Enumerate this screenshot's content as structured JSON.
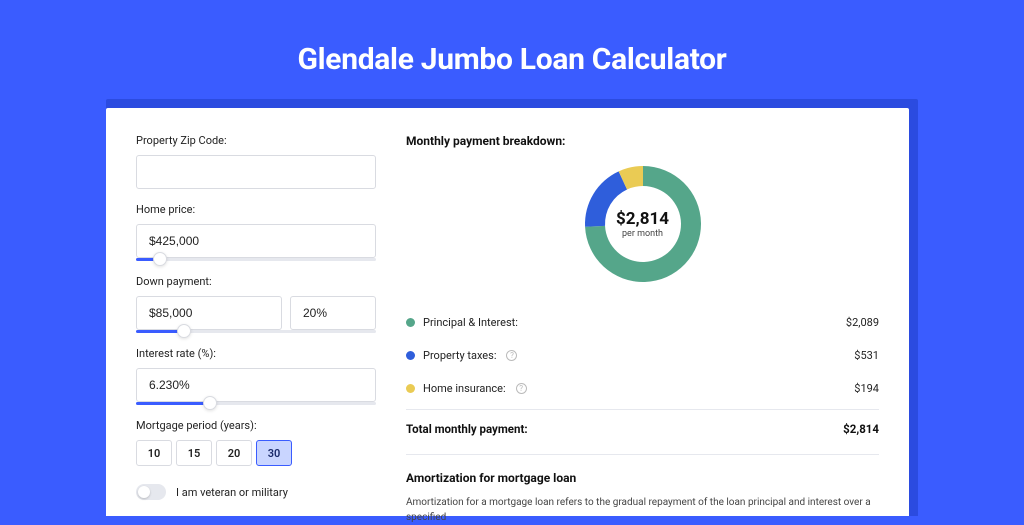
{
  "header": {
    "title": "Glendale Jumbo Loan Calculator"
  },
  "form": {
    "zip": {
      "label": "Property Zip Code:",
      "value": ""
    },
    "home_price": {
      "label": "Home price:",
      "value": "$425,000",
      "slider": {
        "fill_pct": 10,
        "thumb_pct": 10
      }
    },
    "down_payment": {
      "label": "Down payment:",
      "amount": "$85,000",
      "percent": "20%",
      "slider": {
        "fill_pct": 20,
        "thumb_pct": 20
      }
    },
    "interest_rate": {
      "label": "Interest rate (%):",
      "value": "6.230%",
      "slider": {
        "fill_pct": 31,
        "thumb_pct": 31
      }
    },
    "mortgage_period": {
      "label": "Mortgage period (years):",
      "options": [
        "10",
        "15",
        "20",
        "30"
      ],
      "selected": "30"
    },
    "veteran": {
      "label": "I am veteran or military",
      "checked": false
    }
  },
  "breakdown": {
    "title": "Monthly payment breakdown:",
    "donut": {
      "value": "$2,814",
      "sub": "per month",
      "slices": [
        {
          "key": "principal_interest",
          "amount": 2089,
          "color": "#55a68a"
        },
        {
          "key": "property_taxes",
          "amount": 531,
          "color": "#2f5edb"
        },
        {
          "key": "home_insurance",
          "amount": 194,
          "color": "#eacb54"
        }
      ],
      "ring_width": 20,
      "background_color": "#ffffff"
    },
    "legend": [
      {
        "dot_color": "#55a68a",
        "label": "Principal & Interest:",
        "value": "$2,089",
        "info": false
      },
      {
        "dot_color": "#2f5edb",
        "label": "Property taxes:",
        "value": "$531",
        "info": true
      },
      {
        "dot_color": "#eacb54",
        "label": "Home insurance:",
        "value": "$194",
        "info": true
      }
    ],
    "total": {
      "label": "Total monthly payment:",
      "value": "$2,814"
    }
  },
  "amortization": {
    "title": "Amortization for mortgage loan",
    "text": "Amortization for a mortgage loan refers to the gradual repayment of the loan principal and interest over a specified"
  },
  "colors": {
    "page_bg": "#3a5cff",
    "shadow_bg": "#2b4be0",
    "card_bg": "#ffffff",
    "accent": "#3a5cff",
    "input_border": "#d9dbe1",
    "divider": "#e6e8ee"
  }
}
